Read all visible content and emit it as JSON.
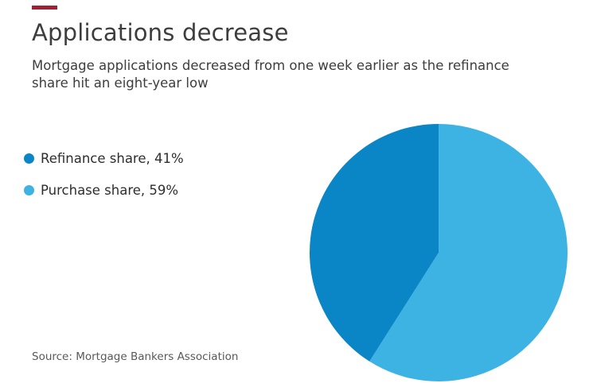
{
  "accent_color": "#9d2235",
  "header": {
    "title": "Applications decrease",
    "subtitle": "Mortgage applications decreased from one week earlier as the refinance share hit an eight-year low"
  },
  "legend": {
    "items": [
      {
        "label": "Refinance share, 41%",
        "color": "#0a85c6"
      },
      {
        "label": "Purchase share, 59%",
        "color": "#3db3e3"
      }
    ]
  },
  "source": "Source: Mortgage Bankers Association",
  "chart_data": {
    "type": "pie",
    "title": "Applications decrease",
    "subtitle": "Mortgage applications decreased from one week earlier as the refinance share hit an eight-year low",
    "slices": [
      {
        "label": "Purchase share",
        "value": 59,
        "color": "#3db3e3"
      },
      {
        "label": "Refinance share",
        "value": 41,
        "color": "#0a85c6"
      }
    ],
    "start_angle_deg": 0,
    "direction": "clockwise",
    "legend_position": "left",
    "source": "Source: Mortgage Bankers Association"
  }
}
